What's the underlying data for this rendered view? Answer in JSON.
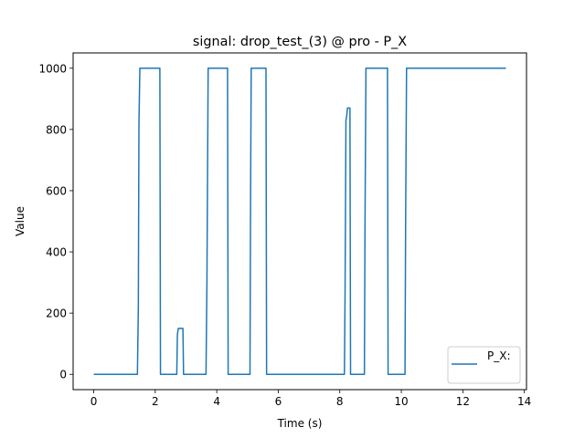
{
  "chart_data": {
    "type": "line",
    "title": "signal: drop_test_(3) @ pro - P_X",
    "xlabel": "Time (s)",
    "ylabel": "Value",
    "xlim": [
      -0.67,
      14.07
    ],
    "ylim": [
      -50,
      1050
    ],
    "xticks": [
      0,
      2,
      4,
      6,
      8,
      10,
      12,
      14
    ],
    "yticks": [
      0,
      200,
      400,
      600,
      800,
      1000
    ],
    "grid": false,
    "legend_position": "lower right",
    "series": [
      {
        "name": "P_X:",
        "color": "#1f77b4",
        "x": [
          0,
          1.42,
          1.45,
          1.47,
          1.5,
          2.15,
          2.17,
          2.7,
          2.72,
          2.75,
          2.78,
          2.9,
          2.92,
          3.65,
          3.68,
          3.72,
          4.35,
          4.37,
          5.08,
          5.1,
          5.12,
          5.6,
          5.62,
          8.15,
          8.17,
          8.2,
          8.22,
          8.25,
          8.33,
          8.35,
          8.8,
          8.82,
          8.85,
          9.55,
          9.57,
          10.12,
          10.14,
          10.17,
          13.4
        ],
        "y": [
          0,
          0,
          220,
          820,
          1000,
          1000,
          0,
          0,
          130,
          150,
          150,
          150,
          0,
          0,
          300,
          1000,
          1000,
          0,
          0,
          600,
          1000,
          1000,
          0,
          0,
          250,
          830,
          840,
          870,
          870,
          0,
          0,
          500,
          1000,
          1000,
          0,
          0,
          500,
          1000,
          1000
        ]
      }
    ]
  }
}
